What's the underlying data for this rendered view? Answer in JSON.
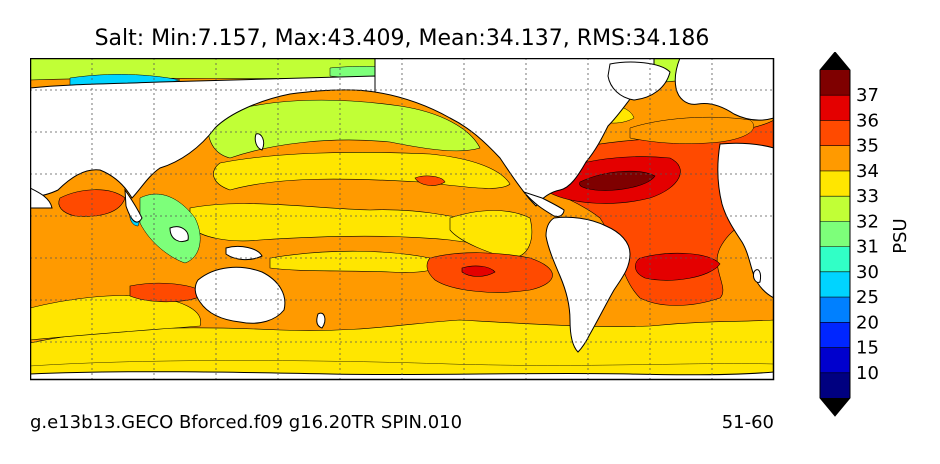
{
  "title": "Salt: Min:7.157, Max:43.409, Mean:34.137, RMS:34.186",
  "footer": {
    "left": "g.e13b13.GECO Bforced.f09 g16.20TR SPIN.010",
    "right": "51-60"
  },
  "colorbar": {
    "label": "PSU",
    "levels": [
      {
        "color": "#000080",
        "tick": ""
      },
      {
        "color": "#0000cd",
        "tick": "10"
      },
      {
        "color": "#0026ff",
        "tick": "15"
      },
      {
        "color": "#0080ff",
        "tick": "20"
      },
      {
        "color": "#00d4ff",
        "tick": "25"
      },
      {
        "color": "#31ffc6",
        "tick": "30"
      },
      {
        "color": "#7dff7a",
        "tick": "31"
      },
      {
        "color": "#c1ff36",
        "tick": "32"
      },
      {
        "color": "#ffe600",
        "tick": "33"
      },
      {
        "color": "#ff9a00",
        "tick": "34"
      },
      {
        "color": "#ff4a00",
        "tick": "35"
      },
      {
        "color": "#e40000",
        "tick": "36"
      },
      {
        "color": "#7f0000",
        "tick": "37"
      }
    ],
    "under_color": "#000000",
    "over_color": "#000000"
  },
  "map": {
    "projection": "cylindrical",
    "gridlines": "dotted",
    "land_color": "#ffffff",
    "coastline_color": "#000000",
    "contour_lines": true
  }
}
